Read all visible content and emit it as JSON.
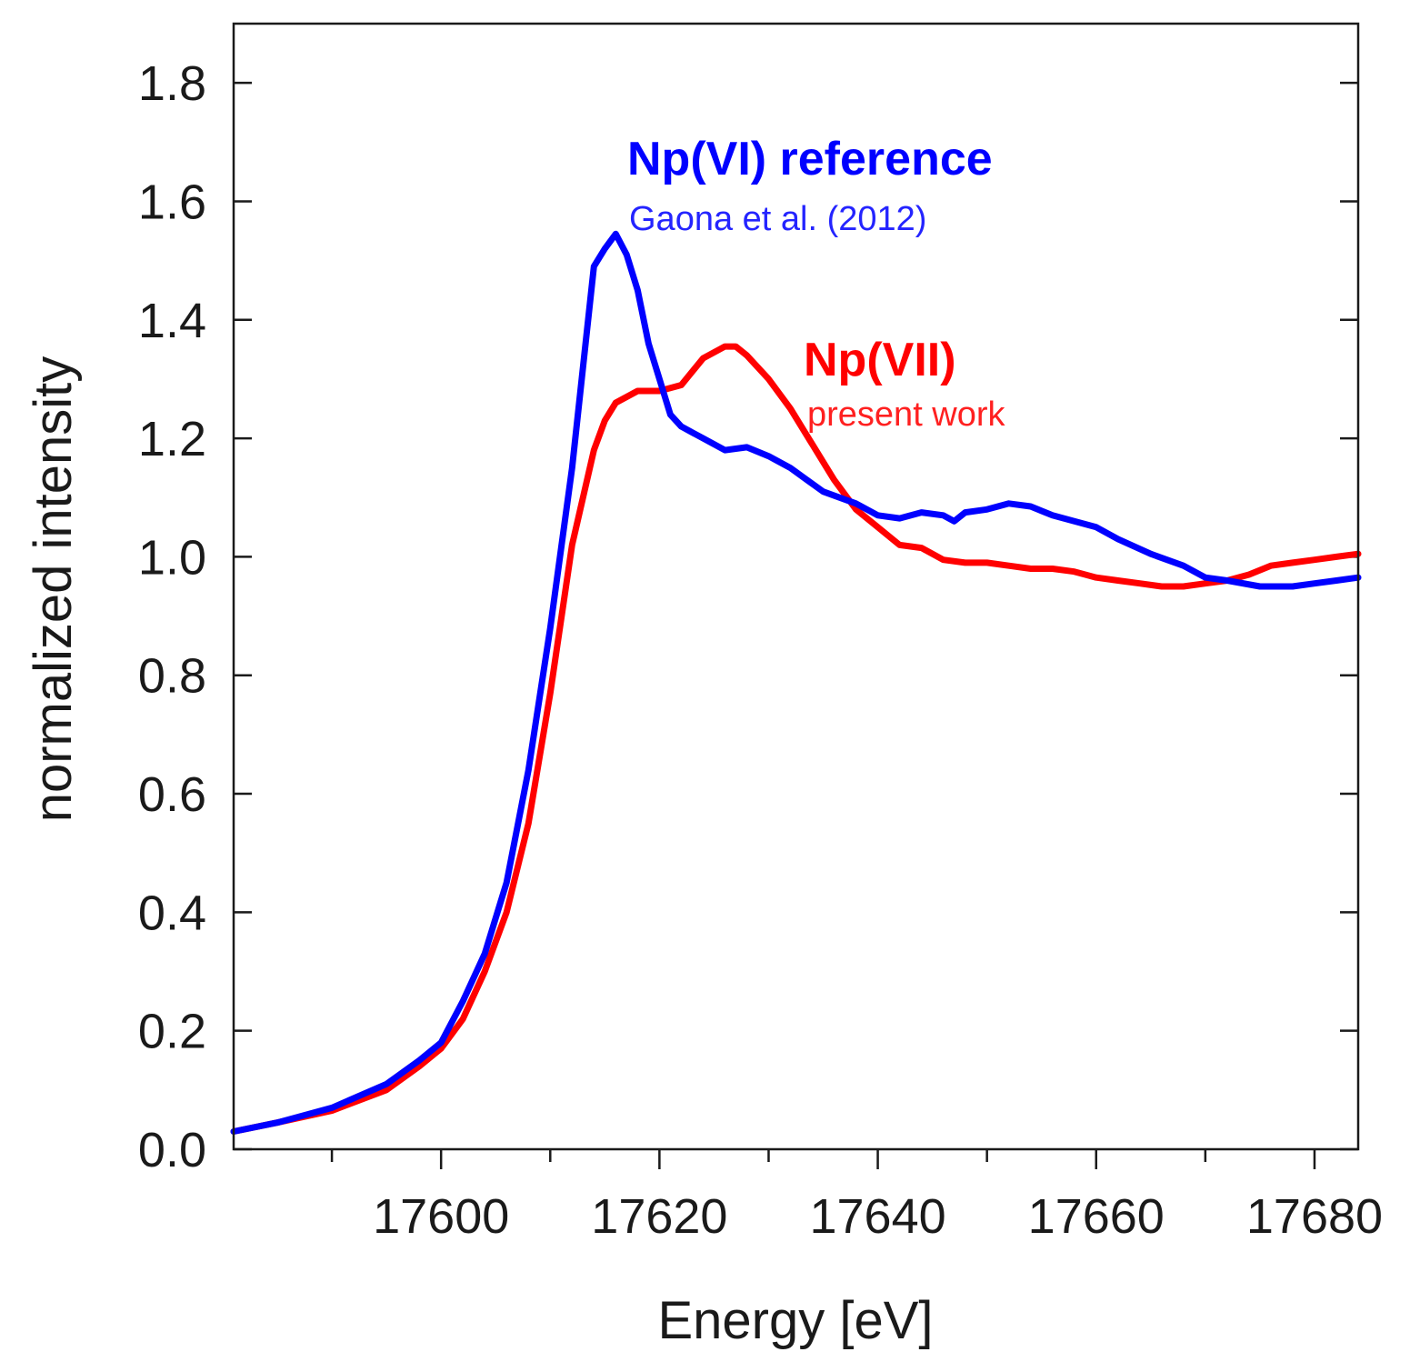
{
  "chart_data": {
    "type": "line",
    "title": "",
    "xlabel": "Energy [eV]",
    "ylabel": "normalized intensity",
    "xlim": [
      17581,
      17684
    ],
    "ylim": [
      0.0,
      1.9
    ],
    "x_ticks": [
      17600,
      17620,
      17640,
      17660,
      17680
    ],
    "x_tick_labels": [
      "17600",
      "17620",
      "17640",
      "17660",
      "17680"
    ],
    "x_minor_ticks": [
      17590,
      17610,
      17630,
      17650,
      17670
    ],
    "y_ticks": [
      0.0,
      0.2,
      0.4,
      0.6,
      0.8,
      1.0,
      1.2,
      1.4,
      1.6,
      1.8
    ],
    "y_tick_labels": [
      "0.0",
      "0.2",
      "0.4",
      "0.6",
      "0.8",
      "1.0",
      "1.2",
      "1.4",
      "1.6",
      "1.8"
    ],
    "grid": false,
    "series": [
      {
        "name": "Np(VI) reference",
        "color": "#0000ff",
        "points": [
          [
            17581,
            0.03
          ],
          [
            17585,
            0.045
          ],
          [
            17590,
            0.07
          ],
          [
            17595,
            0.11
          ],
          [
            17598,
            0.15
          ],
          [
            17600,
            0.18
          ],
          [
            17602,
            0.25
          ],
          [
            17604,
            0.33
          ],
          [
            17606,
            0.45
          ],
          [
            17608,
            0.64
          ],
          [
            17610,
            0.88
          ],
          [
            17612,
            1.15
          ],
          [
            17613,
            1.32
          ],
          [
            17614,
            1.49
          ],
          [
            17615,
            1.52
          ],
          [
            17616,
            1.545
          ],
          [
            17617,
            1.51
          ],
          [
            17618,
            1.45
          ],
          [
            17619,
            1.36
          ],
          [
            17620,
            1.3
          ],
          [
            17621,
            1.24
          ],
          [
            17622,
            1.22
          ],
          [
            17624,
            1.2
          ],
          [
            17626,
            1.18
          ],
          [
            17628,
            1.185
          ],
          [
            17630,
            1.17
          ],
          [
            17632,
            1.15
          ],
          [
            17635,
            1.11
          ],
          [
            17638,
            1.09
          ],
          [
            17640,
            1.07
          ],
          [
            17642,
            1.065
          ],
          [
            17644,
            1.075
          ],
          [
            17646,
            1.07
          ],
          [
            17647,
            1.06
          ],
          [
            17648,
            1.075
          ],
          [
            17650,
            1.08
          ],
          [
            17652,
            1.09
          ],
          [
            17654,
            1.085
          ],
          [
            17656,
            1.07
          ],
          [
            17658,
            1.06
          ],
          [
            17660,
            1.05
          ],
          [
            17662,
            1.03
          ],
          [
            17665,
            1.005
          ],
          [
            17668,
            0.985
          ],
          [
            17670,
            0.965
          ],
          [
            17672,
            0.96
          ],
          [
            17675,
            0.95
          ],
          [
            17678,
            0.95
          ],
          [
            17680,
            0.955
          ],
          [
            17682,
            0.96
          ],
          [
            17684,
            0.965
          ]
        ]
      },
      {
        "name": "Np(VII)",
        "color": "#ff0000",
        "points": [
          [
            17581,
            0.03
          ],
          [
            17585,
            0.045
          ],
          [
            17590,
            0.065
          ],
          [
            17595,
            0.1
          ],
          [
            17598,
            0.14
          ],
          [
            17600,
            0.17
          ],
          [
            17602,
            0.22
          ],
          [
            17604,
            0.3
          ],
          [
            17606,
            0.4
          ],
          [
            17608,
            0.55
          ],
          [
            17610,
            0.77
          ],
          [
            17612,
            1.02
          ],
          [
            17614,
            1.18
          ],
          [
            17615,
            1.23
          ],
          [
            17616,
            1.26
          ],
          [
            17618,
            1.28
          ],
          [
            17620,
            1.28
          ],
          [
            17622,
            1.29
          ],
          [
            17624,
            1.335
          ],
          [
            17626,
            1.355
          ],
          [
            17627,
            1.355
          ],
          [
            17628,
            1.34
          ],
          [
            17630,
            1.3
          ],
          [
            17632,
            1.25
          ],
          [
            17634,
            1.19
          ],
          [
            17636,
            1.13
          ],
          [
            17638,
            1.08
          ],
          [
            17640,
            1.05
          ],
          [
            17642,
            1.02
          ],
          [
            17644,
            1.015
          ],
          [
            17646,
            0.995
          ],
          [
            17648,
            0.99
          ],
          [
            17650,
            0.99
          ],
          [
            17652,
            0.985
          ],
          [
            17654,
            0.98
          ],
          [
            17656,
            0.98
          ],
          [
            17658,
            0.975
          ],
          [
            17660,
            0.965
          ],
          [
            17662,
            0.96
          ],
          [
            17664,
            0.955
          ],
          [
            17666,
            0.95
          ],
          [
            17668,
            0.95
          ],
          [
            17670,
            0.955
          ],
          [
            17672,
            0.96
          ],
          [
            17674,
            0.97
          ],
          [
            17676,
            0.985
          ],
          [
            17678,
            0.99
          ],
          [
            17680,
            0.995
          ],
          [
            17682,
            1.0
          ],
          [
            17684,
            1.005
          ]
        ]
      }
    ],
    "annotations": [
      {
        "text": "Np(VI) reference",
        "color": "#0000ff",
        "style": "bold"
      },
      {
        "text": "Gaona et al. (2012)",
        "color": "#2424ff",
        "style": "normal"
      },
      {
        "text": "Np(VII)",
        "color": "#ff0000",
        "style": "bold"
      },
      {
        "text": "present work",
        "color": "#ff2020",
        "style": "normal"
      }
    ]
  }
}
